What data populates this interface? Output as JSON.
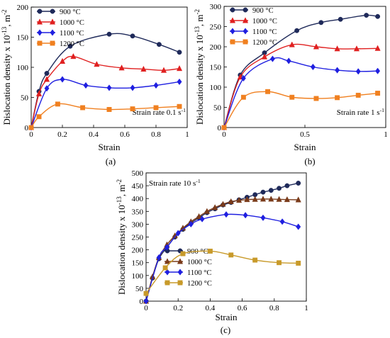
{
  "chart_data": [
    {
      "panel_label": "(a)",
      "type": "line",
      "xlabel": "Strain",
      "ylabel": "Dislocation density x 10",
      "ylabel_exp": "-13",
      "ylabel_unit": ", m",
      "ylabel_unit_exp": "-2",
      "annotation": "Strain rate 0.1 s",
      "annotation_exp": "-1",
      "xlim": [
        0,
        1
      ],
      "ylim": [
        0,
        200
      ],
      "xticks": [
        "0",
        "0.2",
        "0.4",
        "0.6",
        "0.8",
        "1"
      ],
      "yticks": [
        "0",
        "50",
        "100",
        "150",
        "200"
      ],
      "legend_position": "top-left",
      "series": [
        {
          "name": "900 °C",
          "color": "#1f2a5a",
          "marker": "circle",
          "x": [
            0,
            0.05,
            0.1,
            0.25,
            0.5,
            0.65,
            0.82,
            0.95
          ],
          "y": [
            0,
            60,
            90,
            135,
            155,
            152,
            138,
            125
          ]
        },
        {
          "name": "1000 °C",
          "color": "#e02020",
          "marker": "triangle",
          "x": [
            0,
            0.05,
            0.1,
            0.2,
            0.27,
            0.42,
            0.58,
            0.72,
            0.85,
            0.95
          ],
          "y": [
            0,
            56,
            80,
            110,
            118,
            105,
            99,
            97,
            95,
            98
          ]
        },
        {
          "name": "1100 °C",
          "color": "#1f1fe0",
          "marker": "diamond",
          "x": [
            0,
            0.1,
            0.2,
            0.35,
            0.5,
            0.65,
            0.8,
            0.95
          ],
          "y": [
            0,
            65,
            80,
            70,
            66,
            66,
            70,
            76
          ]
        },
        {
          "name": "1200 °C",
          "color": "#f08020",
          "marker": "square",
          "x": [
            0,
            0.05,
            0.17,
            0.33,
            0.5,
            0.65,
            0.8,
            0.95
          ],
          "y": [
            0,
            18,
            39,
            33,
            30,
            31,
            33,
            35
          ]
        }
      ]
    },
    {
      "panel_label": "(b)",
      "type": "line",
      "xlabel": "Strain",
      "ylabel": "Dislocation density x 10",
      "ylabel_exp": "-13",
      "ylabel_unit": ", m",
      "ylabel_unit_exp": "-2",
      "annotation": "Strain rate 1 s",
      "annotation_exp": "-1",
      "xlim": [
        0,
        1
      ],
      "ylim": [
        0,
        300
      ],
      "xticks": [
        "0",
        "0.5",
        "1"
      ],
      "yticks": [
        "0",
        "50",
        "100",
        "150",
        "200",
        "250",
        "300"
      ],
      "legend_position": "top-left",
      "series": [
        {
          "name": "900 °C",
          "color": "#1f2a5a",
          "marker": "circle",
          "x": [
            0,
            0.1,
            0.25,
            0.45,
            0.6,
            0.72,
            0.88,
            0.95
          ],
          "y": [
            0,
            130,
            185,
            240,
            260,
            268,
            278,
            275
          ]
        },
        {
          "name": "1000 °C",
          "color": "#e02020",
          "marker": "triangle",
          "x": [
            0,
            0.1,
            0.25,
            0.42,
            0.57,
            0.7,
            0.82,
            0.95
          ],
          "y": [
            0,
            125,
            175,
            205,
            200,
            195,
            195,
            196
          ]
        },
        {
          "name": "1100 °C",
          "color": "#1f1fe0",
          "marker": "diamond",
          "x": [
            0,
            0.12,
            0.3,
            0.4,
            0.55,
            0.7,
            0.83,
            0.95
          ],
          "y": [
            0,
            122,
            170,
            165,
            150,
            142,
            139,
            140
          ]
        },
        {
          "name": "1200 °C",
          "color": "#f08020",
          "marker": "square",
          "x": [
            0,
            0.12,
            0.27,
            0.42,
            0.57,
            0.7,
            0.83,
            0.95
          ],
          "y": [
            0,
            75,
            89,
            75,
            72,
            74,
            80,
            85
          ]
        }
      ]
    },
    {
      "panel_label": "(c)",
      "type": "line",
      "xlabel": "Strain",
      "ylabel": "Dislocation density x 10",
      "ylabel_exp": "-13",
      "ylabel_unit": ", m",
      "ylabel_unit_exp": "-2",
      "annotation": "Strain rate 10 s",
      "annotation_exp": "-1",
      "xlim": [
        0,
        1
      ],
      "ylim": [
        0,
        500
      ],
      "xticks": [
        "0",
        "0.2",
        "0.4",
        "0.6",
        "0.8",
        "1"
      ],
      "yticks": [
        "0",
        "50",
        "100",
        "150",
        "200",
        "250",
        "300",
        "350",
        "400",
        "450",
        "500"
      ],
      "legend_position": "bottom-left",
      "series": [
        {
          "name": "900 °C",
          "color": "#1f2a5a",
          "marker": "circle",
          "x": [
            0,
            0.04,
            0.08,
            0.13,
            0.18,
            0.23,
            0.28,
            0.33,
            0.38,
            0.43,
            0.48,
            0.53,
            0.58,
            0.63,
            0.68,
            0.73,
            0.78,
            0.83,
            0.88,
            0.95
          ],
          "y": [
            0,
            90,
            165,
            210,
            250,
            280,
            305,
            325,
            345,
            360,
            375,
            385,
            395,
            405,
            415,
            425,
            432,
            440,
            450,
            460
          ]
        },
        {
          "name": "1000 °C",
          "color": "#7a3b1a",
          "marker": "triangle",
          "x": [
            0,
            0.04,
            0.08,
            0.13,
            0.18,
            0.23,
            0.28,
            0.33,
            0.38,
            0.43,
            0.48,
            0.53,
            0.58,
            0.63,
            0.68,
            0.73,
            0.78,
            0.83,
            0.88,
            0.95
          ],
          "y": [
            0,
            95,
            170,
            220,
            255,
            285,
            310,
            330,
            350,
            365,
            378,
            388,
            393,
            396,
            397,
            398,
            398,
            397,
            396,
            395
          ]
        },
        {
          "name": "1100 °C",
          "color": "#1f1fe0",
          "marker": "diamond",
          "x": [
            0,
            0.08,
            0.13,
            0.2,
            0.28,
            0.35,
            0.5,
            0.62,
            0.73,
            0.85,
            0.95
          ],
          "y": [
            0,
            170,
            210,
            265,
            300,
            320,
            338,
            335,
            325,
            310,
            290
          ]
        },
        {
          "name": "1200 °C",
          "color": "#c89a2a",
          "marker": "square",
          "x": [
            0,
            0.12,
            0.23,
            0.4,
            0.53,
            0.68,
            0.83,
            0.95
          ],
          "y": [
            30,
            130,
            185,
            195,
            180,
            160,
            150,
            148
          ]
        }
      ]
    }
  ]
}
